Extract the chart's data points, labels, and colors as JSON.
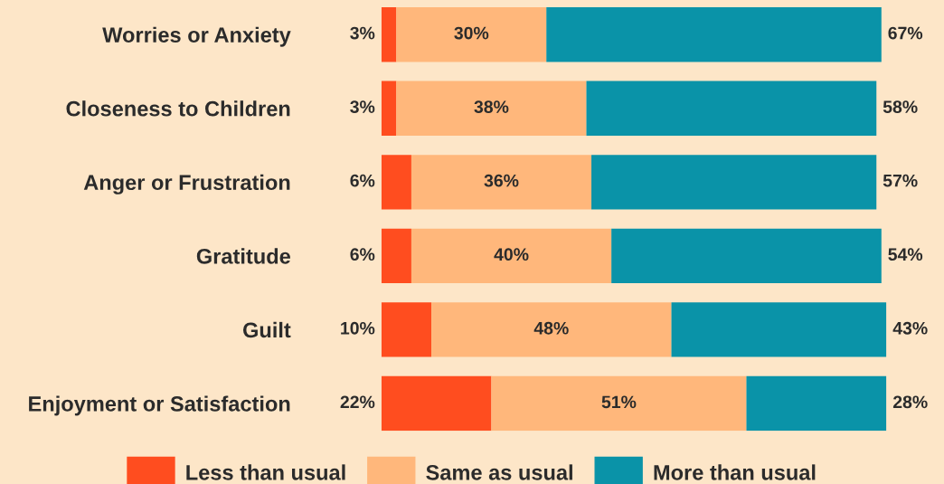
{
  "chart_data": {
    "type": "bar",
    "orientation": "horizontal",
    "stacked": true,
    "grid": false,
    "legend": "bottom",
    "categories": [
      "Worries or Anxiety",
      "Closeness to Children",
      "Anger or Frustration",
      "Gratitude",
      "Guilt",
      "Enjoyment or Satisfaction"
    ],
    "series": [
      {
        "name": "Less than usual",
        "color": "#ff4d1f",
        "values": [
          3,
          3,
          6,
          6,
          10,
          22
        ],
        "value_labels": [
          "3%",
          "3%",
          "6%",
          "6%",
          "10%",
          "22%"
        ]
      },
      {
        "name": "Same as usual",
        "color": "#ffb77b",
        "values": [
          30,
          38,
          36,
          40,
          48,
          51
        ],
        "value_labels": [
          "30%",
          "38%",
          "36%",
          "40%",
          "48%",
          "51%"
        ]
      },
      {
        "name": "More than usual",
        "color": "#0a93a8",
        "values": [
          67,
          58,
          57,
          54,
          43,
          28
        ],
        "value_labels": [
          "67%",
          "58%",
          "57%",
          "54%",
          "43%",
          "28%"
        ]
      }
    ]
  }
}
